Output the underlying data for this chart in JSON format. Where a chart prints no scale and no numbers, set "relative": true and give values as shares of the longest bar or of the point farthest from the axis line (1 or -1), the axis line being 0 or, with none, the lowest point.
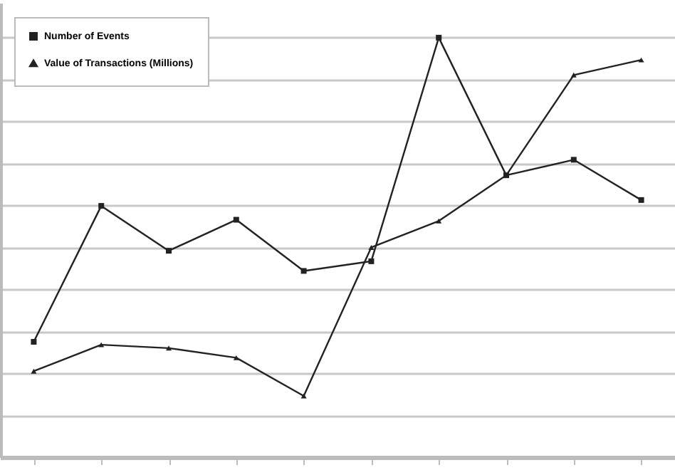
{
  "chart_data": {
    "type": "line",
    "relative": true,
    "categories": [
      null,
      null,
      null,
      null,
      null,
      null,
      null,
      null,
      null,
      null
    ],
    "series": [
      {
        "name": "Number of Events",
        "color": "#222222",
        "marker": "square",
        "values": [
          0.275,
          0.599,
          0.492,
          0.566,
          0.444,
          0.467,
          1,
          0.672,
          0.709,
          0.613
        ]
      },
      {
        "name": "Value of Transactions (Millions)",
        "color": "#222222",
        "marker": "triangle",
        "values": [
          0.205,
          0.268,
          0.26,
          0.237,
          0.146,
          0.5,
          0.563,
          0.672,
          0.911,
          0.947
        ]
      }
    ],
    "grid": "y",
    "legend": "top left",
    "line_style": "solid"
  }
}
